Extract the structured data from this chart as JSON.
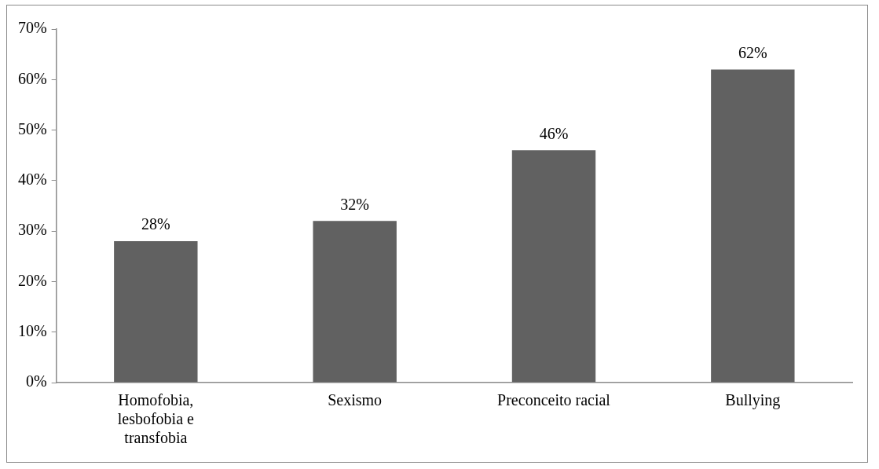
{
  "chart_data": {
    "type": "bar",
    "categories": [
      "Homofobia, lesbofobia e transfobia",
      "Sexismo",
      "Preconceito racial",
      "Bullying"
    ],
    "values": [
      28,
      32,
      46,
      62
    ],
    "value_labels": [
      "28%",
      "32%",
      "46%",
      "62%"
    ],
    "color": "#616161",
    "ylim": [
      0,
      70
    ],
    "yticks": [
      {
        "value": 0,
        "label": "0%"
      },
      {
        "value": 10,
        "label": "10%"
      },
      {
        "value": 20,
        "label": "20%"
      },
      {
        "value": 30,
        "label": "30%"
      },
      {
        "value": 40,
        "label": "40%"
      },
      {
        "value": 50,
        "label": "50%"
      },
      {
        "value": 60,
        "label": "60%"
      },
      {
        "value": 70,
        "label": "70%"
      }
    ],
    "grid": false,
    "legend": false
  }
}
